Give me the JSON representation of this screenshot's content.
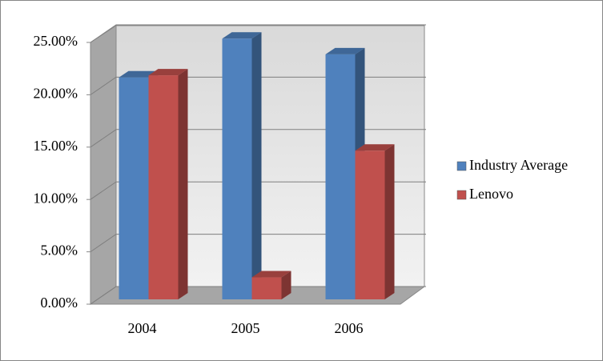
{
  "chart_data": {
    "type": "bar3d",
    "categories": [
      "2004",
      "2005",
      "2006"
    ],
    "series": [
      {
        "name": "Industry Average",
        "color": "#4f81bd",
        "values": [
          21.2,
          24.9,
          23.4
        ]
      },
      {
        "name": "Lenovo",
        "color": "#c0504d",
        "values": [
          21.4,
          2.1,
          14.2
        ]
      }
    ],
    "ylim": [
      0,
      25
    ],
    "yticks": [
      {
        "value": 0,
        "label": "0.00%"
      },
      {
        "value": 5,
        "label": "5.00%"
      },
      {
        "value": 10,
        "label": "10.00%"
      },
      {
        "value": 15,
        "label": "15.00%"
      },
      {
        "value": 20,
        "label": "20.00%"
      },
      {
        "value": 25,
        "label": "25.00%"
      }
    ],
    "grid": true,
    "legend": "right"
  }
}
